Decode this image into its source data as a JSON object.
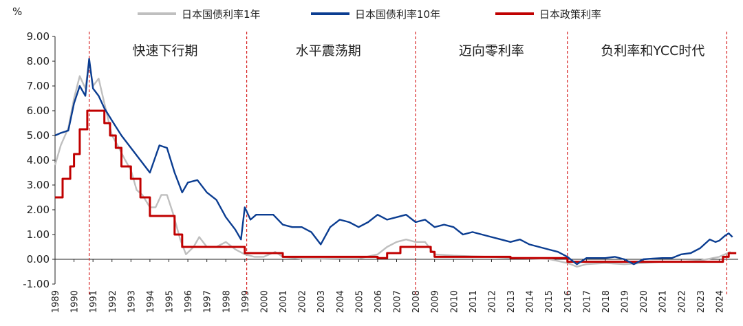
{
  "chart_data": {
    "type": "line",
    "y_unit": "%",
    "ylim": [
      -1,
      9
    ],
    "y_ticks": [
      "9.00",
      "8.00",
      "7.00",
      "6.00",
      "5.00",
      "4.00",
      "3.00",
      "2.00",
      "1.00",
      "0.00",
      "-1.00"
    ],
    "x_ticks": [
      "1989",
      "1990",
      "1991",
      "1992",
      "1993",
      "1994",
      "1995",
      "1996",
      "1997",
      "1998",
      "1999",
      "2000",
      "2001",
      "2002",
      "2003",
      "2004",
      "2005",
      "2006",
      "2007",
      "2008",
      "2009",
      "2010",
      "2011",
      "2012",
      "2013",
      "2014",
      "2015",
      "2016",
      "2017",
      "2018",
      "2019",
      "2020",
      "2021",
      "2022",
      "2023",
      "2024"
    ],
    "x_start_year": 1989,
    "legend_position": "top",
    "grid": false,
    "dividers": [
      1990.8,
      1999.1,
      2008.0,
      2016.0,
      2024.4
    ],
    "periods": [
      {
        "label": "快速下行期",
        "x": 1994.8
      },
      {
        "label": "水平震荡期",
        "x": 2003.4
      },
      {
        "label": "迈向零利率",
        "x": 2012.0
      },
      {
        "label": "负利率和YCC时代",
        "x": 2020.5
      }
    ],
    "series": [
      {
        "name": "日本国债利率1年",
        "color": "#bfbfbf",
        "points": [
          [
            1989.0,
            3.8
          ],
          [
            1989.3,
            4.6
          ],
          [
            1989.7,
            5.3
          ],
          [
            1990.0,
            6.5
          ],
          [
            1990.3,
            7.4
          ],
          [
            1990.6,
            6.9
          ],
          [
            1990.8,
            8.0
          ],
          [
            1991.0,
            7.0
          ],
          [
            1991.3,
            7.3
          ],
          [
            1991.6,
            6.3
          ],
          [
            1992.0,
            5.0
          ],
          [
            1992.3,
            4.6
          ],
          [
            1992.7,
            4.0
          ],
          [
            1993.0,
            3.6
          ],
          [
            1993.3,
            2.8
          ],
          [
            1993.6,
            2.6
          ],
          [
            1994.0,
            2.1
          ],
          [
            1994.3,
            2.1
          ],
          [
            1994.6,
            2.6
          ],
          [
            1994.9,
            2.6
          ],
          [
            1995.2,
            1.9
          ],
          [
            1995.6,
            0.8
          ],
          [
            1995.9,
            0.2
          ],
          [
            1996.3,
            0.5
          ],
          [
            1996.6,
            0.9
          ],
          [
            1997.0,
            0.5
          ],
          [
            1997.5,
            0.5
          ],
          [
            1998.0,
            0.7
          ],
          [
            1998.5,
            0.4
          ],
          [
            1999.0,
            0.2
          ],
          [
            1999.5,
            0.1
          ],
          [
            2000.0,
            0.1
          ],
          [
            2000.6,
            0.3
          ],
          [
            2001.0,
            0.1
          ],
          [
            2002.0,
            0.02
          ],
          [
            2003.0,
            0.02
          ],
          [
            2004.0,
            0.03
          ],
          [
            2005.0,
            0.03
          ],
          [
            2006.0,
            0.2
          ],
          [
            2006.5,
            0.5
          ],
          [
            2007.0,
            0.7
          ],
          [
            2007.5,
            0.8
          ],
          [
            2008.0,
            0.7
          ],
          [
            2008.5,
            0.7
          ],
          [
            2009.0,
            0.2
          ],
          [
            2010.0,
            0.15
          ],
          [
            2011.0,
            0.12
          ],
          [
            2012.0,
            0.1
          ],
          [
            2013.0,
            0.05
          ],
          [
            2014.0,
            0.03
          ],
          [
            2015.0,
            0.01
          ],
          [
            2016.0,
            -0.15
          ],
          [
            2016.5,
            -0.3
          ],
          [
            2017.0,
            -0.2
          ],
          [
            2018.0,
            -0.15
          ],
          [
            2019.0,
            -0.2
          ],
          [
            2020.0,
            -0.15
          ],
          [
            2021.0,
            -0.1
          ],
          [
            2022.0,
            -0.1
          ],
          [
            2023.0,
            -0.05
          ],
          [
            2024.0,
            0.1
          ],
          [
            2024.6,
            0.3
          ]
        ]
      },
      {
        "name": "日本国债利率10年",
        "color": "#0b3d91",
        "points": [
          [
            1989.0,
            5.0
          ],
          [
            1989.3,
            5.1
          ],
          [
            1989.7,
            5.2
          ],
          [
            1990.0,
            6.3
          ],
          [
            1990.3,
            7.0
          ],
          [
            1990.6,
            6.6
          ],
          [
            1990.8,
            8.1
          ],
          [
            1991.0,
            6.9
          ],
          [
            1991.3,
            6.6
          ],
          [
            1991.6,
            6.1
          ],
          [
            1992.0,
            5.6
          ],
          [
            1992.5,
            5.0
          ],
          [
            1993.0,
            4.5
          ],
          [
            1993.5,
            4.0
          ],
          [
            1994.0,
            3.5
          ],
          [
            1994.5,
            4.6
          ],
          [
            1994.9,
            4.5
          ],
          [
            1995.3,
            3.5
          ],
          [
            1995.7,
            2.7
          ],
          [
            1996.0,
            3.1
          ],
          [
            1996.5,
            3.2
          ],
          [
            1997.0,
            2.7
          ],
          [
            1997.5,
            2.4
          ],
          [
            1998.0,
            1.7
          ],
          [
            1998.5,
            1.2
          ],
          [
            1998.8,
            0.8
          ],
          [
            1999.0,
            2.1
          ],
          [
            1999.3,
            1.6
          ],
          [
            1999.6,
            1.8
          ],
          [
            2000.0,
            1.8
          ],
          [
            2000.5,
            1.8
          ],
          [
            2001.0,
            1.4
          ],
          [
            2001.5,
            1.3
          ],
          [
            2002.0,
            1.3
          ],
          [
            2002.5,
            1.1
          ],
          [
            2003.0,
            0.6
          ],
          [
            2003.5,
            1.3
          ],
          [
            2004.0,
            1.6
          ],
          [
            2004.5,
            1.5
          ],
          [
            2005.0,
            1.3
          ],
          [
            2005.5,
            1.5
          ],
          [
            2006.0,
            1.8
          ],
          [
            2006.5,
            1.6
          ],
          [
            2007.0,
            1.7
          ],
          [
            2007.5,
            1.8
          ],
          [
            2008.0,
            1.5
          ],
          [
            2008.5,
            1.6
          ],
          [
            2009.0,
            1.3
          ],
          [
            2009.5,
            1.4
          ],
          [
            2010.0,
            1.3
          ],
          [
            2010.5,
            1.0
          ],
          [
            2011.0,
            1.1
          ],
          [
            2011.5,
            1.0
          ],
          [
            2012.0,
            0.9
          ],
          [
            2012.5,
            0.8
          ],
          [
            2013.0,
            0.7
          ],
          [
            2013.5,
            0.8
          ],
          [
            2014.0,
            0.6
          ],
          [
            2014.5,
            0.5
          ],
          [
            2015.0,
            0.4
          ],
          [
            2015.5,
            0.3
          ],
          [
            2016.0,
            0.1
          ],
          [
            2016.5,
            -0.2
          ],
          [
            2017.0,
            0.05
          ],
          [
            2017.5,
            0.05
          ],
          [
            2018.0,
            0.05
          ],
          [
            2018.5,
            0.1
          ],
          [
            2019.0,
            0.0
          ],
          [
            2019.5,
            -0.2
          ],
          [
            2020.0,
            0.0
          ],
          [
            2020.5,
            0.03
          ],
          [
            2021.0,
            0.05
          ],
          [
            2021.5,
            0.05
          ],
          [
            2022.0,
            0.2
          ],
          [
            2022.5,
            0.25
          ],
          [
            2023.0,
            0.45
          ],
          [
            2023.5,
            0.8
          ],
          [
            2023.8,
            0.7
          ],
          [
            2024.0,
            0.75
          ],
          [
            2024.3,
            0.95
          ],
          [
            2024.5,
            1.05
          ],
          [
            2024.7,
            0.9
          ]
        ]
      },
      {
        "name": "日本政策利率",
        "color": "#c00000",
        "step": true,
        "points": [
          [
            1989.0,
            2.5
          ],
          [
            1989.4,
            3.25
          ],
          [
            1989.8,
            3.75
          ],
          [
            1990.0,
            4.25
          ],
          [
            1990.3,
            5.25
          ],
          [
            1990.7,
            6.0
          ],
          [
            1991.6,
            5.5
          ],
          [
            1991.9,
            5.0
          ],
          [
            1992.2,
            4.5
          ],
          [
            1992.5,
            3.75
          ],
          [
            1993.0,
            3.25
          ],
          [
            1993.5,
            2.5
          ],
          [
            1994.0,
            1.75
          ],
          [
            1995.3,
            1.0
          ],
          [
            1995.7,
            0.5
          ],
          [
            1999.0,
            0.25
          ],
          [
            1999.3,
            0.25
          ],
          [
            2001.0,
            0.1
          ],
          [
            2006.0,
            0.05
          ],
          [
            2006.5,
            0.25
          ],
          [
            2007.2,
            0.5
          ],
          [
            2008.8,
            0.3
          ],
          [
            2009.0,
            0.1
          ],
          [
            2010.0,
            0.1
          ],
          [
            2013.0,
            0.05
          ],
          [
            2016.0,
            -0.1
          ],
          [
            2024.2,
            0.1
          ],
          [
            2024.5,
            0.25
          ]
        ]
      }
    ]
  }
}
